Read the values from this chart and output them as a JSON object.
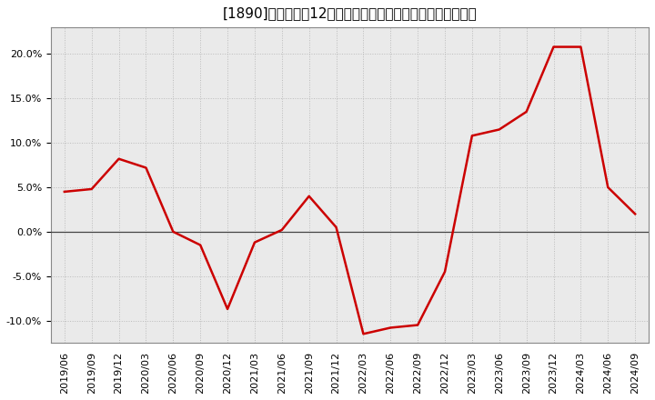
{
  "title": "[1890]　売上高の12か月移動合計の対前年同期増減率の推移",
  "line_color": "#cc0000",
  "bg_color": "#ffffff",
  "plot_bg_color": "#eaeaea",
  "grid_color": "#bbbbbb",
  "x_labels": [
    "2019/06",
    "2019/09",
    "2019/12",
    "2020/03",
    "2020/06",
    "2020/09",
    "2020/12",
    "2021/03",
    "2021/06",
    "2021/09",
    "2021/12",
    "2022/03",
    "2022/06",
    "2022/09",
    "2022/12",
    "2023/03",
    "2023/06",
    "2023/09",
    "2023/12",
    "2024/03",
    "2024/06",
    "2024/09"
  ],
  "y_values": [
    4.5,
    4.8,
    8.2,
    7.2,
    0.0,
    -1.5,
    -8.7,
    -1.2,
    0.2,
    4.0,
    0.5,
    -11.5,
    -10.8,
    -10.5,
    -4.5,
    10.8,
    11.5,
    13.5,
    20.8,
    20.8,
    5.0,
    2.0
  ],
  "ylim": [
    -12.5,
    23.0
  ],
  "yticks": [
    -10.0,
    -5.0,
    0.0,
    5.0,
    10.0,
    15.0,
    20.0
  ],
  "title_fontsize": 11,
  "tick_fontsize": 8
}
